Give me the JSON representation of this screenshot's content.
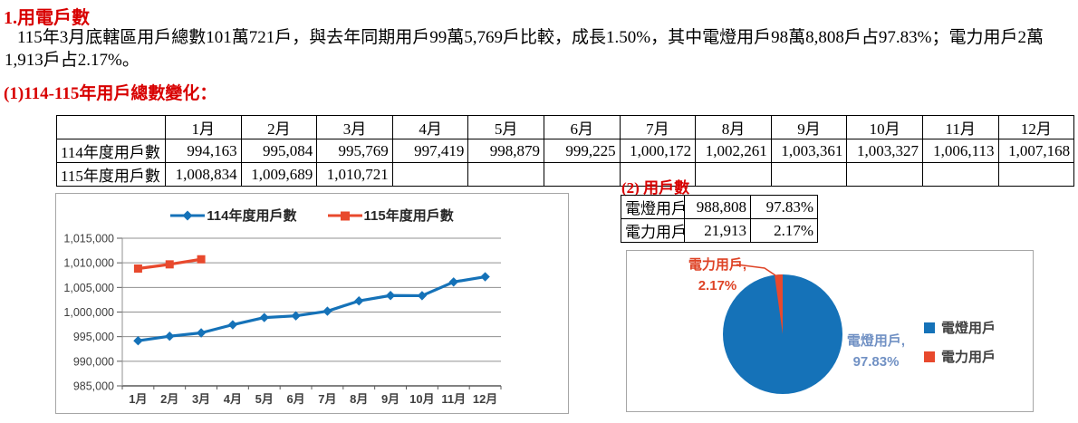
{
  "page": {
    "title": "1.用電戶數",
    "paragraph": "115年3月底轄區用戶總數101萬721戶，與去年同期用戶99萬5,769戶比較，成長1.50%，其中電燈用戶98萬8,808戶占97.83%；電力用戶2萬1,913戶占2.17%。",
    "section1_heading": "(1)114-115年用戶總數變化：",
    "section2_heading": "(2) 用戶數"
  },
  "monthly_table": {
    "corner": "",
    "months": [
      "1月",
      "2月",
      "3月",
      "4月",
      "5月",
      "6月",
      "7月",
      "8月",
      "9月",
      "10月",
      "11月",
      "12月"
    ],
    "rows": [
      {
        "label": "114年度用戶數",
        "values": [
          "994,163",
          "995,084",
          "995,769",
          "997,419",
          "998,879",
          "999,225",
          "1,000,172",
          "1,002,261",
          "1,003,361",
          "1,003,327",
          "1,006,113",
          "1,007,168"
        ]
      },
      {
        "label": "115年度用戶數",
        "values": [
          "1,008,834",
          "1,009,689",
          "1,010,721",
          "",
          "",
          "",
          "",
          "",
          "",
          "",
          "",
          ""
        ]
      }
    ]
  },
  "user_type_table": {
    "rows": [
      {
        "label": "電燈用戶",
        "count": "988,808",
        "percent": "97.83%"
      },
      {
        "label": "電力用戶",
        "count": "21,913",
        "percent": "2.17%"
      }
    ]
  },
  "colors": {
    "heading_red": "#d80000",
    "series_blue": "#1572b8",
    "series_red": "#e8492d",
    "pie_label_blue": "#7191c4",
    "pie_label_red": "#de4326",
    "gridline": "#909090",
    "axis": "#595959",
    "chart_border": "#a6a6a6"
  },
  "chart_data": [
    {
      "type": "line",
      "title": "",
      "categories": [
        "1月",
        "2月",
        "3月",
        "4月",
        "5月",
        "6月",
        "7月",
        "8月",
        "9月",
        "10月",
        "11月",
        "12月"
      ],
      "series": [
        {
          "name": "114年度用戶數",
          "color": "#1572b8",
          "marker": "diamond",
          "values": [
            994163,
            995084,
            995769,
            997419,
            998879,
            999225,
            1000172,
            1002261,
            1003361,
            1003327,
            1006113,
            1007168
          ]
        },
        {
          "name": "115年度用戶數",
          "color": "#e8492d",
          "marker": "square",
          "values": [
            1008834,
            1009689,
            1010721,
            null,
            null,
            null,
            null,
            null,
            null,
            null,
            null,
            null
          ]
        }
      ],
      "xlabel": "",
      "ylabel": "",
      "ylim": [
        985000,
        1015000
      ],
      "ytick_step": 5000,
      "grid": true,
      "legend_position": "top"
    },
    {
      "type": "pie",
      "slices": [
        {
          "label": "電燈用戶",
          "value": 97.83,
          "color": "#1572b8"
        },
        {
          "label": "電力用戶",
          "value": 2.17,
          "color": "#e8492d"
        }
      ],
      "data_labels": [
        {
          "line1": "電燈用戶,",
          "line2": "97.83%"
        },
        {
          "line1": "電力用戶,",
          "line2": "2.17%"
        }
      ],
      "legend_position": "right",
      "start_angle_deg": -90,
      "direction": "clockwise"
    }
  ]
}
